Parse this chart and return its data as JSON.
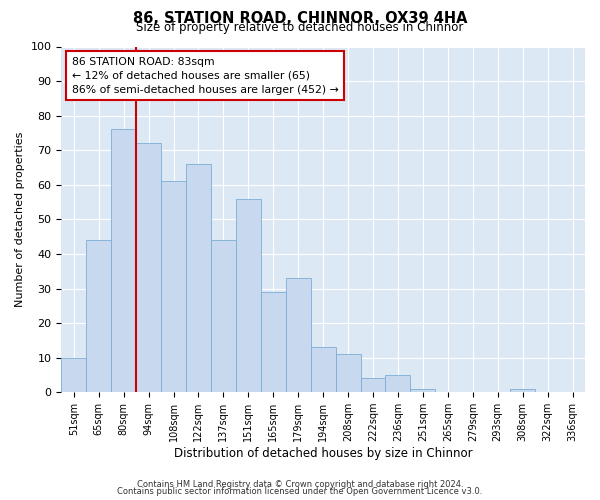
{
  "title": "86, STATION ROAD, CHINNOR, OX39 4HA",
  "subtitle": "Size of property relative to detached houses in Chinnor",
  "xlabel": "Distribution of detached houses by size in Chinnor",
  "ylabel": "Number of detached properties",
  "bin_labels": [
    "51sqm",
    "65sqm",
    "80sqm",
    "94sqm",
    "108sqm",
    "122sqm",
    "137sqm",
    "151sqm",
    "165sqm",
    "179sqm",
    "194sqm",
    "208sqm",
    "222sqm",
    "236sqm",
    "251sqm",
    "265sqm",
    "279sqm",
    "293sqm",
    "308sqm",
    "322sqm",
    "336sqm"
  ],
  "bar_heights": [
    10,
    44,
    76,
    72,
    61,
    66,
    44,
    56,
    29,
    33,
    13,
    11,
    4,
    5,
    1,
    0,
    0,
    0,
    1,
    0,
    0
  ],
  "bar_color": "#c8d9ef",
  "bar_edge_color": "#7badd4",
  "vline_x_idx": 2,
  "vline_color": "#cc0000",
  "ylim": [
    0,
    100
  ],
  "yticks": [
    0,
    10,
    20,
    30,
    40,
    50,
    60,
    70,
    80,
    90,
    100
  ],
  "annotation_text": "86 STATION ROAD: 83sqm\n← 12% of detached houses are smaller (65)\n86% of semi-detached houses are larger (452) →",
  "annotation_box_color": "#ffffff",
  "annotation_box_edge": "#cc0000",
  "footer_line1": "Contains HM Land Registry data © Crown copyright and database right 2024.",
  "footer_line2": "Contains public sector information licensed under the Open Government Licence v3.0.",
  "bg_color": "#dde8f5",
  "fig_bg_color": "#ffffff"
}
